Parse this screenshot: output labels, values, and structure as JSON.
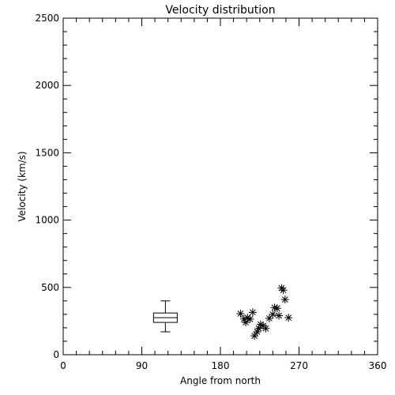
{
  "chart_data": {
    "type": "scatter",
    "title": "Velocity distribution",
    "xlabel": "Angle from north",
    "ylabel": "Velocity (km/s)",
    "xlim": [
      0,
      360
    ],
    "ylim": [
      0,
      2500
    ],
    "xticks": [
      0,
      90,
      180,
      270,
      360
    ],
    "yticks": [
      0,
      500,
      1000,
      1500,
      2000,
      2500
    ],
    "grid": false,
    "boxplot": {
      "x": 117,
      "whisker_low": 170,
      "q1": 240,
      "median": 275,
      "q3": 310,
      "whisker_high": 400
    },
    "points": [
      [
        203,
        305
      ],
      [
        207,
        265
      ],
      [
        209,
        240
      ],
      [
        211,
        275
      ],
      [
        214,
        265
      ],
      [
        217,
        315
      ],
      [
        219,
        140
      ],
      [
        222,
        170
      ],
      [
        224,
        195
      ],
      [
        226,
        225
      ],
      [
        229,
        215
      ],
      [
        232,
        195
      ],
      [
        236,
        270
      ],
      [
        240,
        300
      ],
      [
        242,
        350
      ],
      [
        245,
        345
      ],
      [
        247,
        290
      ],
      [
        250,
        495
      ],
      [
        252,
        480
      ],
      [
        254,
        410
      ],
      [
        258,
        275
      ]
    ],
    "marker": "asterisk"
  }
}
